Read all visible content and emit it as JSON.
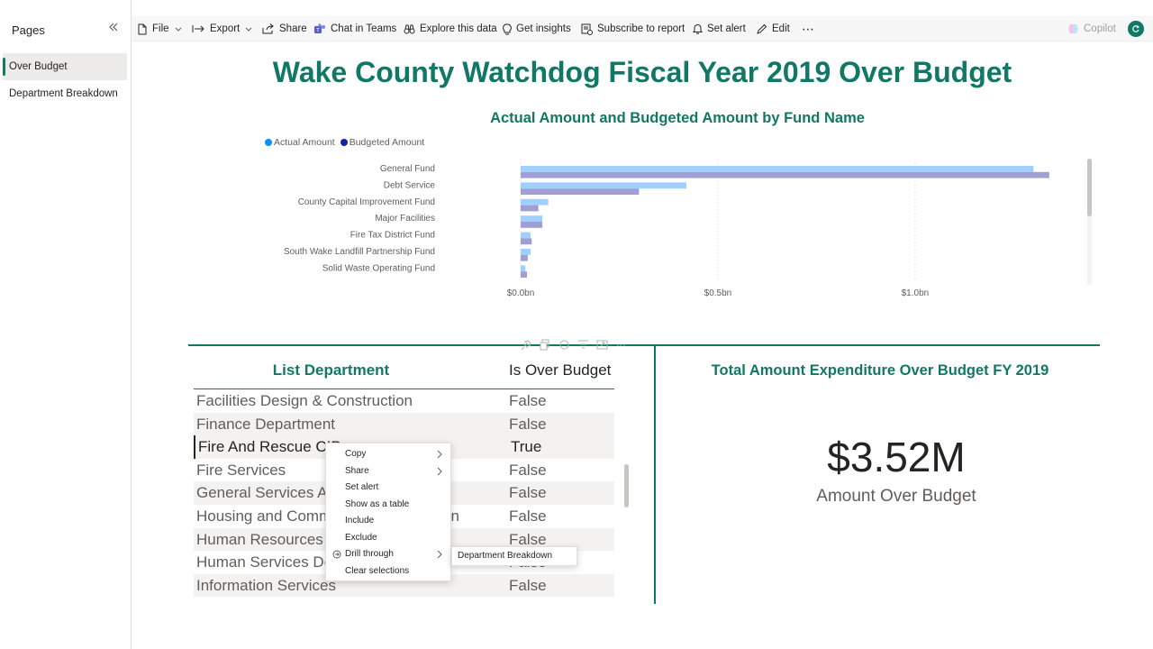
{
  "pages_pane": {
    "title": "Pages",
    "items": [
      {
        "label": "Over Budget",
        "active": true
      },
      {
        "label": "Department Breakdown",
        "active": false
      }
    ]
  },
  "toolbar": {
    "file": "File",
    "export": "Export",
    "share": "Share",
    "chat_in_teams": "Chat in Teams",
    "explore": "Explore this data",
    "insights": "Get insights",
    "subscribe": "Subscribe to report",
    "alert": "Set alert",
    "edit": "Edit",
    "more": "⋯",
    "copilot": "Copilot"
  },
  "report": {
    "title": "Wake County Watchdog Fiscal Year 2019 Over Budget"
  },
  "colors": {
    "accent": "#117865",
    "actual": "#118dff",
    "budgeted": "#12239e",
    "actual_bar": "#9fd0ff",
    "budgeted_bar": "#a09fd4"
  },
  "chart_data": {
    "type": "bar",
    "orientation": "horizontal",
    "title": "Actual Amount and Budgeted Amount by Fund Name",
    "categories": [
      "General Fund",
      "Debt Service",
      "County Capital Improvement Fund",
      "Major Facilities",
      "Fire Tax District Fund",
      "South Wake Landfill Partnership Fund",
      "Solid Waste Operating Fund"
    ],
    "series": [
      {
        "name": "Actual Amount",
        "values": [
          1.3,
          0.42,
          0.07,
          0.055,
          0.025,
          0.025,
          0.012
        ]
      },
      {
        "name": "Budgeted Amount",
        "values": [
          1.34,
          0.3,
          0.045,
          0.055,
          0.028,
          0.018,
          0.016
        ]
      }
    ],
    "xlim": [
      0,
      1.45
    ],
    "ticks": [
      "$0.0bn",
      "$0.5bn",
      "$1.0bn"
    ],
    "tick_values": [
      0,
      0.5,
      1.0
    ],
    "legend_position": "top-left",
    "grid": true
  },
  "table": {
    "headers": {
      "department": "List Department",
      "over_budget": "Is Over Budget"
    },
    "rows": [
      {
        "department": "Facilities Design & Construction",
        "over_budget": "False"
      },
      {
        "department": "Finance Department",
        "over_budget": "False"
      },
      {
        "department": "Fire And Rescue CIP",
        "over_budget": "True"
      },
      {
        "department": "Fire Services",
        "over_budget": "False"
      },
      {
        "department": "General Services Administration",
        "over_budget": "False"
      },
      {
        "department": "Housing and Community Revitalization",
        "over_budget": "False"
      },
      {
        "department": "Human Resources Department",
        "over_budget": "False"
      },
      {
        "department": "Human Services Department",
        "over_budget": "False"
      },
      {
        "department": "Information Services",
        "over_budget": "False"
      }
    ]
  },
  "card": {
    "title": "Total Amount Expenditure Over Budget FY 2019",
    "value": "$3.52M",
    "label": "Amount Over Budget"
  },
  "context_menu": {
    "items": [
      "Copy",
      "Share",
      "Set alert",
      "Show as a table",
      "Include",
      "Exclude",
      "Drill through",
      "Clear selections"
    ],
    "submenu_item": "Department Breakdown"
  }
}
